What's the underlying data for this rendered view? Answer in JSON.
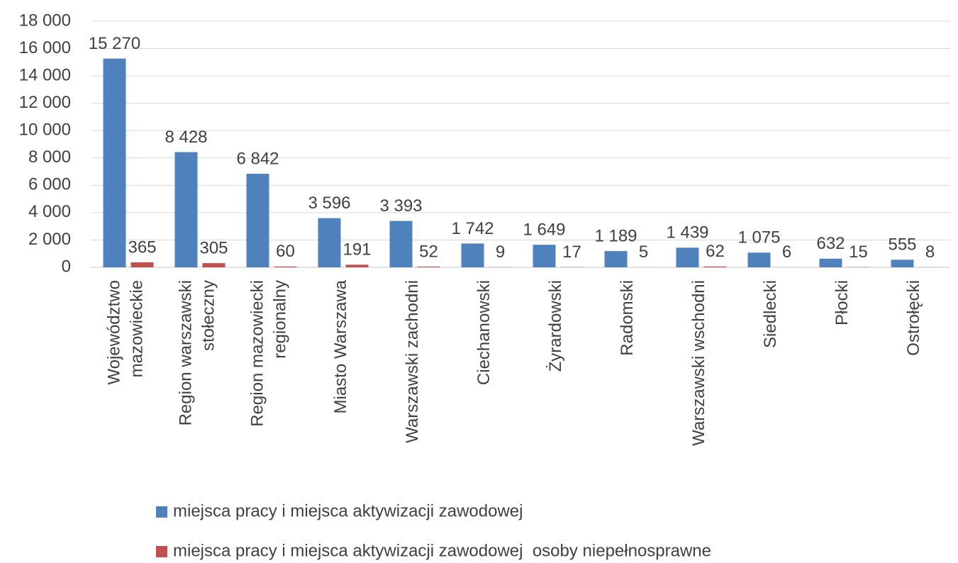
{
  "chart_data": {
    "type": "bar",
    "categories": [
      "Województwo mazowieckie",
      "Region warszawski stołeczny",
      "Region mazowiecki regionalny",
      "Miasto Warszawa",
      "Warszawski zachodni",
      "Ciechanowski",
      "Żyrardowski",
      "Radomski",
      "Warszawski wschodni",
      "Siedlecki",
      "Płocki",
      "Ostrołęcki"
    ],
    "series": [
      {
        "name": "miejsca pracy i miejsca aktywizacji zawodowej",
        "color": "#4f81bd",
        "values": [
          15270,
          8428,
          6842,
          3596,
          3393,
          1742,
          1649,
          1189,
          1439,
          1075,
          632,
          555
        ],
        "value_labels": [
          "15 270",
          "8 428",
          "6 842",
          "3 596",
          "3 393",
          "1 742",
          "1 649",
          "1 189",
          "1 439",
          "1 075",
          "632",
          "555"
        ]
      },
      {
        "name": "miejsca pracy i miejsca aktywizacji zawodowej  osoby niepełnosprawne",
        "color": "#c0504d",
        "values": [
          365,
          305,
          60,
          191,
          52,
          9,
          17,
          5,
          62,
          6,
          15,
          8
        ],
        "value_labels": [
          "365",
          "305",
          "60",
          "191",
          "52",
          "9",
          "17",
          "5",
          "62",
          "6",
          "15",
          "8"
        ]
      }
    ],
    "ylim": [
      0,
      18000
    ],
    "yticks": [
      0,
      {
        "value": 2000,
        "label": "2 000"
      },
      {
        "value": 4000,
        "label": "4 000"
      },
      {
        "value": 6000,
        "label": "6 000"
      },
      {
        "value": 8000,
        "label": "8 000"
      },
      {
        "value": 10000,
        "label": "10 000"
      },
      {
        "value": 12000,
        "label": "12 000"
      },
      {
        "value": 14000,
        "label": "14 000"
      },
      {
        "value": 16000,
        "label": "16 000"
      },
      {
        "value": 18000,
        "label": "18 000"
      }
    ],
    "grid": true,
    "legend": "bottom"
  }
}
